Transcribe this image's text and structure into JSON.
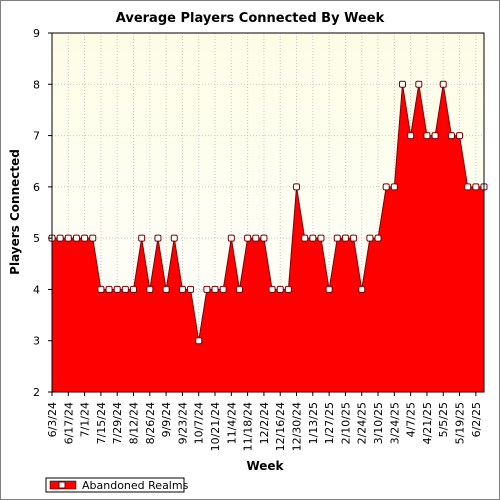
{
  "chart_data": {
    "type": "area",
    "title": "Average Players Connected By Week",
    "xlabel": "Week",
    "ylabel": "Players Connected",
    "ylim": [
      2,
      9
    ],
    "yticks": [
      2,
      3,
      4,
      5,
      6,
      7,
      8,
      9
    ],
    "grid": true,
    "legend_position": "bottom-left",
    "x_tick_labels": [
      "6/3/24",
      "6/17/24",
      "7/1/24",
      "7/15/24",
      "7/29/24",
      "8/12/24",
      "8/26/24",
      "9/9/24",
      "9/23/24",
      "10/7/24",
      "10/21/24",
      "11/4/24",
      "11/18/24",
      "12/2/24",
      "12/16/24",
      "12/30/24",
      "1/13/25",
      "1/27/25",
      "2/10/25",
      "2/24/25",
      "3/10/25",
      "3/24/25",
      "4/7/25",
      "4/21/25",
      "5/5/25",
      "5/19/25",
      "6/2/25"
    ],
    "x": [
      "6/3/24",
      "6/10/24",
      "6/17/24",
      "6/24/24",
      "7/1/24",
      "7/8/24",
      "7/15/24",
      "7/22/24",
      "7/29/24",
      "8/5/24",
      "8/12/24",
      "8/19/24",
      "8/26/24",
      "9/2/24",
      "9/9/24",
      "9/16/24",
      "9/23/24",
      "9/30/24",
      "10/7/24",
      "10/14/24",
      "10/21/24",
      "10/28/24",
      "11/4/24",
      "11/11/24",
      "11/18/24",
      "11/25/24",
      "12/2/24",
      "12/9/24",
      "12/16/24",
      "12/23/24",
      "12/30/24",
      "1/6/25",
      "1/13/25",
      "1/20/25",
      "1/27/25",
      "2/3/25",
      "2/10/25",
      "2/17/25",
      "2/24/25",
      "3/3/25",
      "3/10/25",
      "3/17/25",
      "3/24/25",
      "3/31/25",
      "4/7/25",
      "4/14/25",
      "4/21/25",
      "4/28/25",
      "5/5/25",
      "5/12/25",
      "5/19/25",
      "5/26/25",
      "6/2/25",
      "6/9/25"
    ],
    "series": [
      {
        "name": "Abandoned Realms",
        "color": "#ff0000",
        "values": [
          5,
          5,
          5,
          5,
          5,
          5,
          4,
          4,
          4,
          4,
          4,
          5,
          4,
          5,
          4,
          5,
          4,
          4,
          3,
          4,
          4,
          4,
          5,
          4,
          5,
          5,
          5,
          4,
          4,
          4,
          6,
          5,
          5,
          5,
          4,
          5,
          5,
          5,
          4,
          5,
          5,
          6,
          6,
          8,
          7,
          8,
          7,
          7,
          8,
          7,
          7,
          6,
          6,
          6
        ]
      }
    ],
    "colors": {
      "plot_background_top": "#fdfde6",
      "plot_background_bottom": "#ffffff",
      "fill": "#ff0000",
      "line": "#800000",
      "marker_fill": "#ffffff",
      "marker_stroke": "#800000",
      "grid": "#c8c8c8"
    }
  }
}
